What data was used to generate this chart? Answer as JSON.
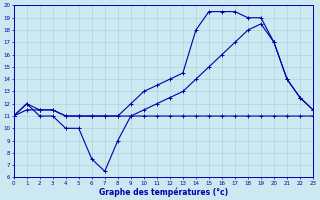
{
  "bg_color": "#cce8f0",
  "grid_color": "#aaccdd",
  "line_color": "#0000aa",
  "xlabel": "Graphe des températures (°c)",
  "xlim": [
    0,
    23
  ],
  "ylim": [
    6,
    20
  ],
  "xticks": [
    0,
    1,
    2,
    3,
    4,
    5,
    6,
    7,
    8,
    9,
    10,
    11,
    12,
    13,
    14,
    15,
    16,
    17,
    18,
    19,
    20,
    21,
    22,
    23
  ],
  "yticks": [
    6,
    7,
    8,
    9,
    10,
    11,
    12,
    13,
    14,
    15,
    16,
    17,
    18,
    19,
    20
  ],
  "hours": [
    0,
    1,
    2,
    3,
    4,
    5,
    6,
    7,
    8,
    9,
    10,
    11,
    12,
    13,
    14,
    15,
    16,
    17,
    18,
    19,
    20,
    21,
    22,
    23
  ],
  "line_top": [
    11,
    12,
    11.5,
    11.5,
    11,
    11,
    11,
    11,
    11,
    12,
    13,
    13.5,
    14,
    14.5,
    18,
    19.5,
    19.5,
    19.5,
    19,
    19,
    17,
    14,
    12.5,
    11.5
  ],
  "line_mid": [
    11,
    11.5,
    11.5,
    11.5,
    11,
    11,
    11,
    11,
    11,
    11,
    11.5,
    12,
    12.5,
    13,
    14,
    15,
    16,
    17,
    18,
    18.5,
    17,
    14,
    12.5,
    11.5
  ],
  "line_bot": [
    11,
    12,
    11,
    11,
    10,
    10,
    7.5,
    6.5,
    9,
    11,
    11,
    11,
    11,
    11,
    11,
    11,
    11,
    11,
    11,
    11,
    11,
    11,
    11,
    11
  ]
}
